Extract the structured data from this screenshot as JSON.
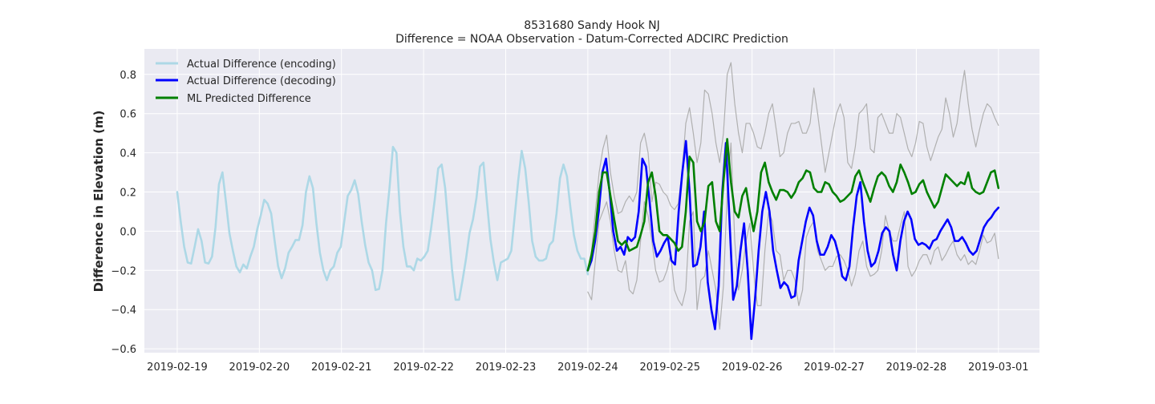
{
  "chart_data": {
    "type": "line",
    "title": "8531680 Sandy Hook NJ",
    "subtitle": "Difference = NOAA Observation - Datum-Corrected ADCIRC Prediction",
    "xlabel": "",
    "ylabel": "Difference in Elevation (m)",
    "x_tick_labels": [
      "2019-02-19",
      "2019-02-20",
      "2019-02-21",
      "2019-02-22",
      "2019-02-23",
      "2019-02-24",
      "2019-02-25",
      "2019-02-26",
      "2019-02-27",
      "2019-02-28",
      "2019-03-01"
    ],
    "y_tick_labels": [
      "−0.6",
      "−0.4",
      "−0.2",
      "0.0",
      "0.2",
      "0.4",
      "0.6",
      "0.8"
    ],
    "y_ticks": [
      -0.6,
      -0.4,
      -0.2,
      0.0,
      0.2,
      0.4,
      0.6,
      0.8
    ],
    "xlim_days": [
      -0.4,
      10.5
    ],
    "ylim": [
      -0.62,
      0.93
    ],
    "grid": true,
    "legend_position": "upper-left",
    "colors": {
      "background": "#eaeaf2",
      "grid": "#ffffff",
      "encoding": "#add8e6",
      "decoding": "#0000ff",
      "predicted": "#008000",
      "bounds": "#b0b0b0"
    },
    "series": [
      {
        "name": "Actual Difference (encoding)",
        "key": "encoding",
        "x_start": 0.0,
        "x_end": 5.0,
        "values": [
          0.2,
          0.05,
          -0.08,
          -0.16,
          -0.165,
          -0.08,
          0.01,
          -0.05,
          -0.16,
          -0.165,
          -0.13,
          0.02,
          0.24,
          0.3,
          0.15,
          -0.01,
          -0.1,
          -0.18,
          -0.21,
          -0.17,
          -0.19,
          -0.13,
          -0.08,
          0.01,
          0.08,
          0.16,
          0.14,
          0.09,
          -0.05,
          -0.18,
          -0.24,
          -0.19,
          -0.11,
          -0.08,
          -0.045,
          -0.045,
          0.03,
          0.2,
          0.28,
          0.22,
          0.04,
          -0.11,
          -0.2,
          -0.25,
          -0.2,
          -0.18,
          -0.11,
          -0.08,
          0.05,
          0.18,
          0.21,
          0.26,
          0.19,
          0.05,
          -0.07,
          -0.16,
          -0.2,
          -0.3,
          -0.295,
          -0.2,
          0.04,
          0.22,
          0.43,
          0.4,
          0.1,
          -0.08,
          -0.18,
          -0.18,
          -0.2,
          -0.14,
          -0.15,
          -0.13,
          -0.1,
          0.02,
          0.16,
          0.32,
          0.34,
          0.22,
          0.01,
          -0.2,
          -0.35,
          -0.35,
          -0.25,
          -0.14,
          -0.01,
          0.06,
          0.17,
          0.33,
          0.35,
          0.15,
          -0.04,
          -0.16,
          -0.25,
          -0.16,
          -0.15,
          -0.14,
          -0.1,
          0.08,
          0.26,
          0.41,
          0.32,
          0.15,
          -0.05,
          -0.13,
          -0.15,
          -0.15,
          -0.14,
          -0.07,
          -0.05,
          0.09,
          0.27,
          0.34,
          0.28,
          0.12,
          -0.02,
          -0.1,
          -0.14,
          -0.14,
          -0.22
        ]
      },
      {
        "name": "Actual Difference (decoding)",
        "key": "decoding",
        "x_start": 5.0,
        "x_end": 10.0,
        "values": [
          -0.2,
          -0.15,
          -0.05,
          0.1,
          0.3,
          0.37,
          0.2,
          0.0,
          -0.1,
          -0.08,
          -0.12,
          -0.03,
          -0.05,
          -0.03,
          0.1,
          0.37,
          0.33,
          0.15,
          -0.05,
          -0.13,
          -0.1,
          -0.06,
          -0.03,
          -0.15,
          -0.17,
          0.1,
          0.3,
          0.46,
          0.2,
          -0.18,
          -0.17,
          -0.08,
          0.1,
          -0.26,
          -0.4,
          -0.5,
          -0.28,
          0.2,
          0.45,
          0.05,
          -0.35,
          -0.28,
          -0.1,
          0.04,
          -0.2,
          -0.55,
          -0.35,
          -0.1,
          0.1,
          0.2,
          0.1,
          -0.1,
          -0.2,
          -0.29,
          -0.26,
          -0.28,
          -0.34,
          -0.33,
          -0.15,
          -0.05,
          0.05,
          0.12,
          0.08,
          -0.05,
          -0.12,
          -0.12,
          -0.08,
          -0.02,
          -0.05,
          -0.12,
          -0.23,
          -0.25,
          -0.18,
          0.02,
          0.18,
          0.25,
          0.05,
          -0.1,
          -0.18,
          -0.16,
          -0.1,
          -0.01,
          0.02,
          0.0,
          -0.12,
          -0.2,
          -0.05,
          0.05,
          0.1,
          0.06,
          -0.04,
          -0.07,
          -0.06,
          -0.07,
          -0.09,
          -0.05,
          -0.04,
          0.0,
          0.03,
          0.06,
          0.02,
          -0.05,
          -0.05,
          -0.03,
          -0.06,
          -0.1,
          -0.12,
          -0.1,
          -0.04,
          0.02,
          0.05,
          0.07,
          0.1,
          0.12
        ]
      },
      {
        "name": "ML Predicted Difference",
        "key": "predicted",
        "x_start": 5.0,
        "x_end": 10.0,
        "values": [
          -0.2,
          -0.12,
          0.0,
          0.2,
          0.3,
          0.3,
          0.18,
          0.06,
          -0.05,
          -0.07,
          -0.05,
          -0.1,
          -0.09,
          -0.08,
          -0.02,
          0.05,
          0.25,
          0.3,
          0.18,
          0.0,
          -0.02,
          -0.02,
          -0.04,
          -0.06,
          -0.1,
          -0.08,
          0.1,
          0.38,
          0.35,
          0.05,
          0.0,
          0.05,
          0.23,
          0.25,
          0.05,
          0.0,
          0.25,
          0.47,
          0.25,
          0.1,
          0.07,
          0.18,
          0.22,
          0.1,
          0.0,
          0.1,
          0.3,
          0.35,
          0.25,
          0.2,
          0.16,
          0.21,
          0.21,
          0.2,
          0.17,
          0.2,
          0.25,
          0.27,
          0.31,
          0.3,
          0.22,
          0.2,
          0.2,
          0.25,
          0.24,
          0.2,
          0.18,
          0.15,
          0.16,
          0.18,
          0.2,
          0.28,
          0.31,
          0.25,
          0.2,
          0.15,
          0.22,
          0.28,
          0.3,
          0.28,
          0.23,
          0.2,
          0.25,
          0.34,
          0.3,
          0.25,
          0.19,
          0.2,
          0.24,
          0.26,
          0.2,
          0.16,
          0.12,
          0.15,
          0.22,
          0.29,
          0.27,
          0.25,
          0.23,
          0.25,
          0.24,
          0.3,
          0.22,
          0.2,
          0.19,
          0.2,
          0.25,
          0.3,
          0.31,
          0.22
        ]
      },
      {
        "name": "",
        "key": "upper_bound",
        "x_start": 5.0,
        "x_end": 10.0,
        "values": [
          -0.2,
          -0.1,
          0.1,
          0.3,
          0.42,
          0.49,
          0.3,
          0.18,
          0.09,
          0.1,
          0.15,
          0.18,
          0.15,
          0.2,
          0.45,
          0.5,
          0.4,
          0.15,
          0.25,
          0.24,
          0.2,
          0.18,
          0.13,
          0.11,
          0.14,
          0.3,
          0.55,
          0.63,
          0.5,
          0.35,
          0.45,
          0.72,
          0.7,
          0.6,
          0.45,
          0.35,
          0.5,
          0.8,
          0.86,
          0.65,
          0.5,
          0.4,
          0.55,
          0.55,
          0.5,
          0.43,
          0.42,
          0.5,
          0.6,
          0.65,
          0.52,
          0.38,
          0.4,
          0.5,
          0.55,
          0.55,
          0.56,
          0.5,
          0.5,
          0.55,
          0.73,
          0.6,
          0.45,
          0.3,
          0.4,
          0.5,
          0.6,
          0.65,
          0.58,
          0.35,
          0.32,
          0.43,
          0.6,
          0.62,
          0.65,
          0.42,
          0.4,
          0.58,
          0.6,
          0.55,
          0.5,
          0.5,
          0.6,
          0.58,
          0.5,
          0.42,
          0.38,
          0.45,
          0.56,
          0.55,
          0.43,
          0.36,
          0.42,
          0.48,
          0.52,
          0.68,
          0.6,
          0.48,
          0.55,
          0.7,
          0.82,
          0.65,
          0.52,
          0.43,
          0.52,
          0.6,
          0.65,
          0.63,
          0.58,
          0.54
        ]
      },
      {
        "name": "",
        "key": "lower_bound",
        "x_start": 5.0,
        "x_end": 10.0,
        "values": [
          -0.31,
          -0.35,
          -0.15,
          0.05,
          0.1,
          0.15,
          0.05,
          -0.1,
          -0.2,
          -0.21,
          -0.15,
          -0.3,
          -0.32,
          -0.25,
          -0.05,
          0.15,
          0.08,
          -0.05,
          -0.2,
          -0.26,
          -0.25,
          -0.2,
          -0.12,
          -0.3,
          -0.35,
          -0.38,
          -0.3,
          0.05,
          0.1,
          -0.4,
          -0.25,
          -0.23,
          -0.1,
          -0.2,
          -0.3,
          -0.5,
          -0.28,
          0.2,
          0.45,
          -0.05,
          -0.3,
          -0.2,
          -0.05,
          0.04,
          -0.2,
          -0.38,
          -0.38,
          -0.1,
          0.1,
          0.05,
          -0.1,
          -0.12,
          -0.25,
          -0.2,
          -0.2,
          -0.25,
          -0.38,
          -0.3,
          -0.03,
          0.02,
          0.05,
          -0.1,
          -0.15,
          -0.2,
          -0.18,
          -0.18,
          -0.13,
          -0.12,
          -0.15,
          -0.2,
          -0.28,
          -0.22,
          -0.1,
          -0.05,
          -0.18,
          -0.23,
          -0.22,
          -0.2,
          -0.1,
          0.08,
          0.0,
          -0.05,
          -0.05,
          0.03,
          0.1,
          -0.18,
          -0.23,
          -0.2,
          -0.15,
          -0.12,
          -0.12,
          -0.17,
          -0.1,
          -0.08,
          -0.15,
          -0.12,
          -0.08,
          -0.05,
          -0.12,
          -0.15,
          -0.12,
          -0.17,
          -0.15,
          -0.17,
          -0.1,
          -0.02,
          -0.06,
          -0.05,
          -0.01,
          -0.14
        ]
      }
    ]
  }
}
